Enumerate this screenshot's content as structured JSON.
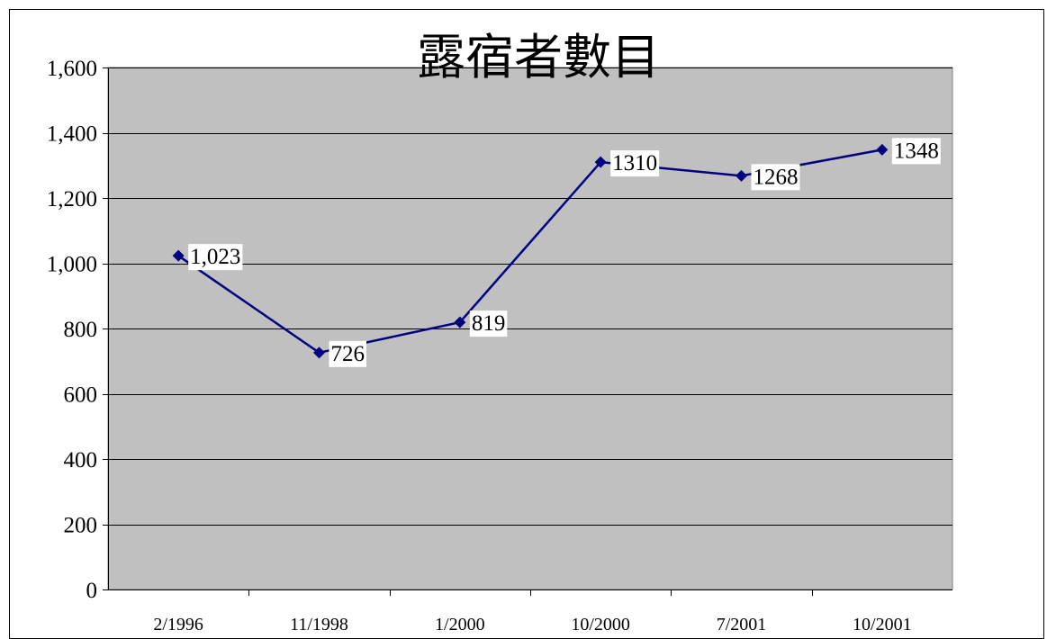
{
  "chart_data": {
    "type": "line",
    "title": "露宿者數目",
    "xlabel": "",
    "ylabel": "",
    "categories": [
      "2/1996",
      "11/1998",
      "1/2000",
      "10/2000",
      "7/2001",
      "10/2001"
    ],
    "series": [
      {
        "values": [
          1023,
          726,
          819,
          1310,
          1268,
          1348
        ],
        "data_labels": [
          "1,023",
          "726",
          "819",
          "1310",
          "1268",
          "1348"
        ]
      }
    ],
    "ylim": [
      0,
      1600
    ],
    "yticks": [
      0,
      200,
      400,
      600,
      800,
      1000,
      1200,
      1400,
      1600
    ],
    "ytick_labels": [
      "0",
      "200",
      "400",
      "600",
      "800",
      "1,000",
      "1,200",
      "1,400",
      "1,600"
    ],
    "grid": true,
    "legend": "none",
    "colors": {
      "plot_background": "#C0C0C0",
      "series_line": "#000080",
      "gridline": "#000000"
    }
  }
}
